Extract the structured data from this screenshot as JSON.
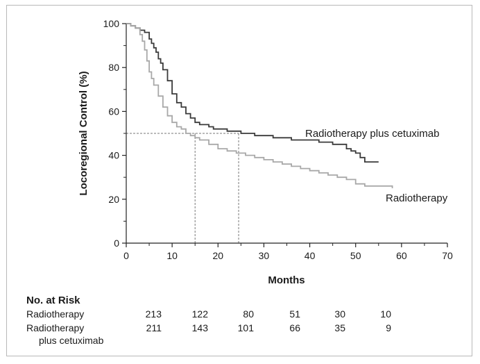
{
  "chart_data": {
    "type": "line",
    "xlabel": "Months",
    "ylabel": "Locoregional Control (%)",
    "xlim": [
      0,
      70
    ],
    "ylim": [
      0,
      100
    ],
    "xticks": [
      0,
      10,
      20,
      30,
      40,
      50,
      60,
      70
    ],
    "yticks": [
      0,
      20,
      40,
      60,
      80,
      100
    ],
    "series": [
      {
        "name": "Radiotherapy plus cetuximab",
        "label": "Radiotherapy plus cetuximab",
        "color": "#3a3a3a",
        "x": [
          0,
          1,
          2,
          3,
          4,
          5,
          5.5,
          6,
          6.5,
          7,
          7.5,
          8,
          9,
          10,
          11,
          12,
          13,
          14,
          15,
          16,
          17,
          18,
          19,
          20,
          22,
          24,
          25,
          26,
          28,
          30,
          32,
          34,
          36,
          38,
          40,
          42,
          44,
          45,
          46,
          48,
          49,
          50,
          51,
          52,
          53,
          55
        ],
        "y": [
          100,
          99,
          98,
          97,
          96,
          93,
          91,
          89,
          87,
          84,
          82,
          79,
          74,
          68,
          64,
          62,
          59,
          57,
          55,
          54,
          54,
          53,
          52,
          52,
          51,
          51,
          50,
          50,
          49,
          49,
          48,
          48,
          47,
          47,
          47,
          46,
          46,
          45,
          45,
          43,
          42,
          41,
          39,
          37,
          37,
          37
        ]
      },
      {
        "name": "Radiotherapy",
        "label": "Radiotherapy",
        "color": "#a8a8a8",
        "x": [
          0,
          1,
          2,
          3,
          3.5,
          4,
          4.5,
          5,
          5.5,
          6,
          7,
          8,
          9,
          10,
          11,
          12,
          13,
          14,
          15,
          16,
          18,
          20,
          22,
          24,
          26,
          28,
          30,
          32,
          34,
          36,
          38,
          40,
          42,
          44,
          46,
          48,
          50,
          52,
          55,
          58
        ],
        "y": [
          100,
          99,
          98,
          95,
          92,
          88,
          83,
          78,
          75,
          72,
          67,
          62,
          58,
          55,
          53,
          52,
          50,
          49,
          48,
          47,
          45,
          43,
          42,
          41,
          40,
          39,
          38,
          37,
          36,
          35,
          34,
          33,
          32,
          31,
          30,
          29,
          27,
          26,
          26,
          25
        ]
      }
    ],
    "reference_lines": {
      "y": 50,
      "x_ends": [
        15,
        24.5
      ]
    }
  },
  "risk_table": {
    "title": "No. at Risk",
    "rows": [
      {
        "label": "Radiotherapy",
        "label_line2": "",
        "values": [
          "213",
          "122",
          "80",
          "51",
          "30",
          "10"
        ]
      },
      {
        "label": "Radiotherapy",
        "label_line2": "plus cetuximab",
        "values": [
          "211",
          "143",
          "101",
          "66",
          "35",
          "9"
        ]
      }
    ]
  }
}
